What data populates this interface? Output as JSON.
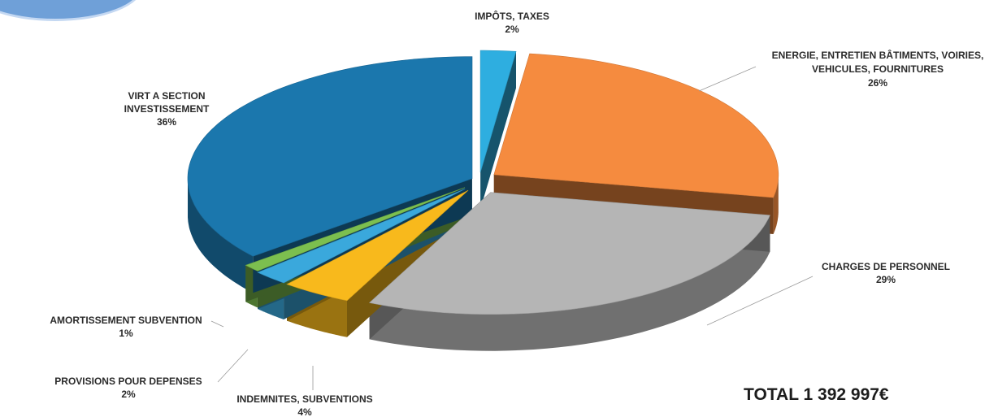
{
  "chart_data": {
    "type": "pie",
    "title": "",
    "slices": [
      {
        "label": "IMPÔTS, TAXES",
        "value": 2,
        "display": "2%",
        "color": "#2eaee0"
      },
      {
        "label": "ENERGIE, ENTRETIEN BÂTIMENTS, VOIRIES, VEHICULES, FOURNITURES",
        "value": 26,
        "display": "26%",
        "color": "#f58b3f"
      },
      {
        "label": "CHARGES DE PERSONNEL",
        "value": 29,
        "display": "29%",
        "color": "#b5b5b5"
      },
      {
        "label": "INDEMNITES, SUBVENTIONS",
        "value": 4,
        "display": "4%",
        "color": "#f8b91c"
      },
      {
        "label": "PROVISIONS POUR DEPENSES",
        "value": 2,
        "display": "2%",
        "color": "#3aa8dc"
      },
      {
        "label": "AMORTISSEMENT SUBVENTION",
        "value": 1,
        "display": "1%",
        "color": "#7cbf4f"
      },
      {
        "label": "VIRT A SECTION INVESTISSEMENT",
        "value": 36,
        "display": "36%",
        "color": "#1b77ad"
      }
    ],
    "total_label": "TOTAL 1 392 997€"
  }
}
